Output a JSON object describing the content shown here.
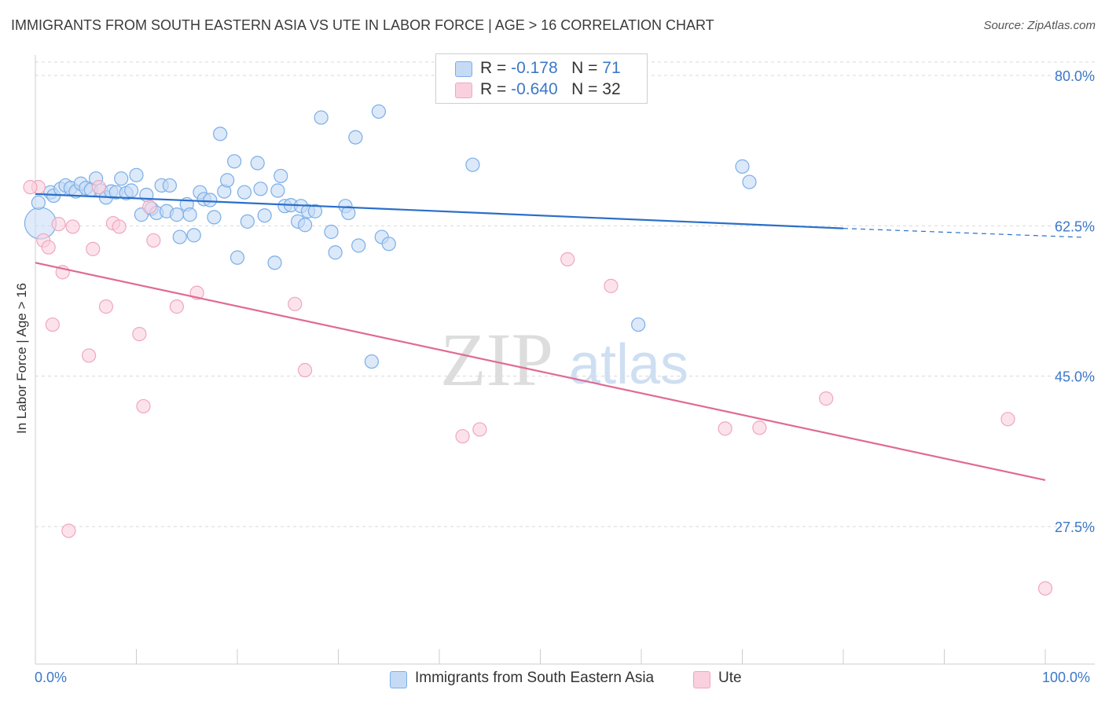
{
  "title": "IMMIGRANTS FROM SOUTH EASTERN ASIA VS UTE IN LABOR FORCE | AGE > 16 CORRELATION CHART",
  "source": "Source: ZipAtlas.com",
  "watermark": {
    "zip": "ZIP",
    "atlas": "atlas"
  },
  "chart_data": {
    "type": "scatter",
    "ylabel": "In Labor Force | Age > 16",
    "xlabel": "",
    "xlim": [
      0,
      100
    ],
    "ylim": [
      10,
      82
    ],
    "x_tick_labels": [
      "0.0%",
      "100.0%"
    ],
    "y_ticks": [
      {
        "value": 80.0,
        "label": "80.0%"
      },
      {
        "value": 62.5,
        "label": "62.5%"
      },
      {
        "value": 45.0,
        "label": "45.0%"
      },
      {
        "value": 27.5,
        "label": "27.5%"
      }
    ],
    "grid": "horizontal-dashed",
    "legend": {
      "placement": "top-center",
      "entries": [
        {
          "r_label": "R =",
          "r_value": "-0.178",
          "n_label": "N =",
          "n_value": "71"
        },
        {
          "r_label": "R =",
          "r_value": "-0.640",
          "n_label": "N = 32",
          "n_value": ""
        }
      ]
    },
    "series": [
      {
        "name": "Immigrants from South Eastern Asia",
        "color": "#7aaee8",
        "fill": "#c5dbf5",
        "trend": {
          "x0": 0,
          "y0": 66.2,
          "x1": 80,
          "y1": 62.2,
          "dash_to_x": 100,
          "dash_to_y": 61.2,
          "color": "#2a6fc9"
        },
        "points": [
          [
            0.5,
            62.8
          ],
          [
            1.5,
            66.4
          ],
          [
            1.8,
            66.0
          ],
          [
            2.5,
            66.8
          ],
          [
            3.0,
            67.2
          ],
          [
            3.5,
            66.9
          ],
          [
            4.0,
            66.5
          ],
          [
            4.5,
            67.4
          ],
          [
            5.0,
            66.9
          ],
          [
            5.5,
            66.7
          ],
          [
            6.0,
            68.0
          ],
          [
            6.5,
            66.6
          ],
          [
            7.0,
            65.8
          ],
          [
            7.5,
            66.5
          ],
          [
            8.0,
            66.4
          ],
          [
            8.5,
            68.0
          ],
          [
            9.0,
            66.3
          ],
          [
            9.5,
            66.6
          ],
          [
            10.0,
            68.4
          ],
          [
            10.5,
            63.8
          ],
          [
            11.0,
            66.1
          ],
          [
            11.5,
            64.5
          ],
          [
            12.0,
            64.0
          ],
          [
            12.5,
            67.2
          ],
          [
            13.0,
            64.2
          ],
          [
            13.3,
            67.2
          ],
          [
            14.0,
            63.8
          ],
          [
            14.3,
            61.2
          ],
          [
            15.0,
            65.0
          ],
          [
            15.3,
            63.8
          ],
          [
            15.7,
            61.4
          ],
          [
            16.3,
            66.4
          ],
          [
            16.7,
            65.6
          ],
          [
            17.3,
            65.5
          ],
          [
            17.7,
            63.5
          ],
          [
            18.3,
            73.2
          ],
          [
            18.7,
            66.5
          ],
          [
            19.0,
            67.8
          ],
          [
            19.7,
            70.0
          ],
          [
            20.0,
            58.8
          ],
          [
            20.7,
            66.4
          ],
          [
            21.0,
            63.0
          ],
          [
            22.0,
            69.8
          ],
          [
            22.3,
            66.8
          ],
          [
            22.7,
            63.7
          ],
          [
            23.7,
            58.2
          ],
          [
            24.0,
            66.6
          ],
          [
            24.3,
            68.3
          ],
          [
            24.7,
            64.8
          ],
          [
            25.3,
            64.9
          ],
          [
            26.0,
            63.0
          ],
          [
            26.3,
            64.8
          ],
          [
            26.7,
            62.6
          ],
          [
            27.0,
            64.2
          ],
          [
            27.7,
            64.2
          ],
          [
            28.3,
            75.1
          ],
          [
            29.3,
            61.8
          ],
          [
            29.7,
            59.4
          ],
          [
            30.7,
            64.8
          ],
          [
            31.0,
            64.0
          ],
          [
            31.7,
            72.8
          ],
          [
            32.0,
            60.2
          ],
          [
            33.3,
            46.7
          ],
          [
            34.0,
            75.8
          ],
          [
            34.3,
            61.2
          ],
          [
            35.0,
            60.4
          ],
          [
            43.3,
            69.6
          ],
          [
            59.7,
            51.0
          ],
          [
            70.0,
            69.4
          ],
          [
            70.7,
            67.6
          ],
          [
            0.3,
            65.2
          ]
        ]
      },
      {
        "name": "Ute",
        "color": "#f0a6bf",
        "fill": "#fad0de",
        "trend": {
          "x0": 0,
          "y0": 58.2,
          "x1": 100,
          "y1": 32.9,
          "color": "#e06a95"
        },
        "points": [
          [
            0.3,
            67.0
          ],
          [
            0.8,
            60.8
          ],
          [
            1.3,
            60.0
          ],
          [
            1.7,
            51.0
          ],
          [
            2.3,
            62.7
          ],
          [
            2.7,
            57.1
          ],
          [
            3.3,
            27.0
          ],
          [
            3.7,
            62.4
          ],
          [
            5.3,
            47.4
          ],
          [
            5.7,
            59.8
          ],
          [
            6.3,
            67.0
          ],
          [
            7.0,
            53.1
          ],
          [
            7.7,
            62.8
          ],
          [
            8.3,
            62.4
          ],
          [
            10.3,
            49.9
          ],
          [
            10.7,
            41.5
          ],
          [
            11.3,
            64.7
          ],
          [
            11.7,
            60.8
          ],
          [
            14.0,
            53.1
          ],
          [
            16.0,
            54.7
          ],
          [
            25.7,
            53.4
          ],
          [
            26.7,
            45.7
          ],
          [
            42.3,
            38.0
          ],
          [
            44.0,
            38.8
          ],
          [
            52.7,
            58.6
          ],
          [
            57.0,
            55.5
          ],
          [
            68.3,
            38.9
          ],
          [
            71.7,
            39.0
          ],
          [
            78.3,
            42.4
          ],
          [
            96.3,
            40.0
          ],
          [
            100.0,
            20.3
          ],
          [
            -0.5,
            67.0
          ]
        ]
      }
    ]
  }
}
